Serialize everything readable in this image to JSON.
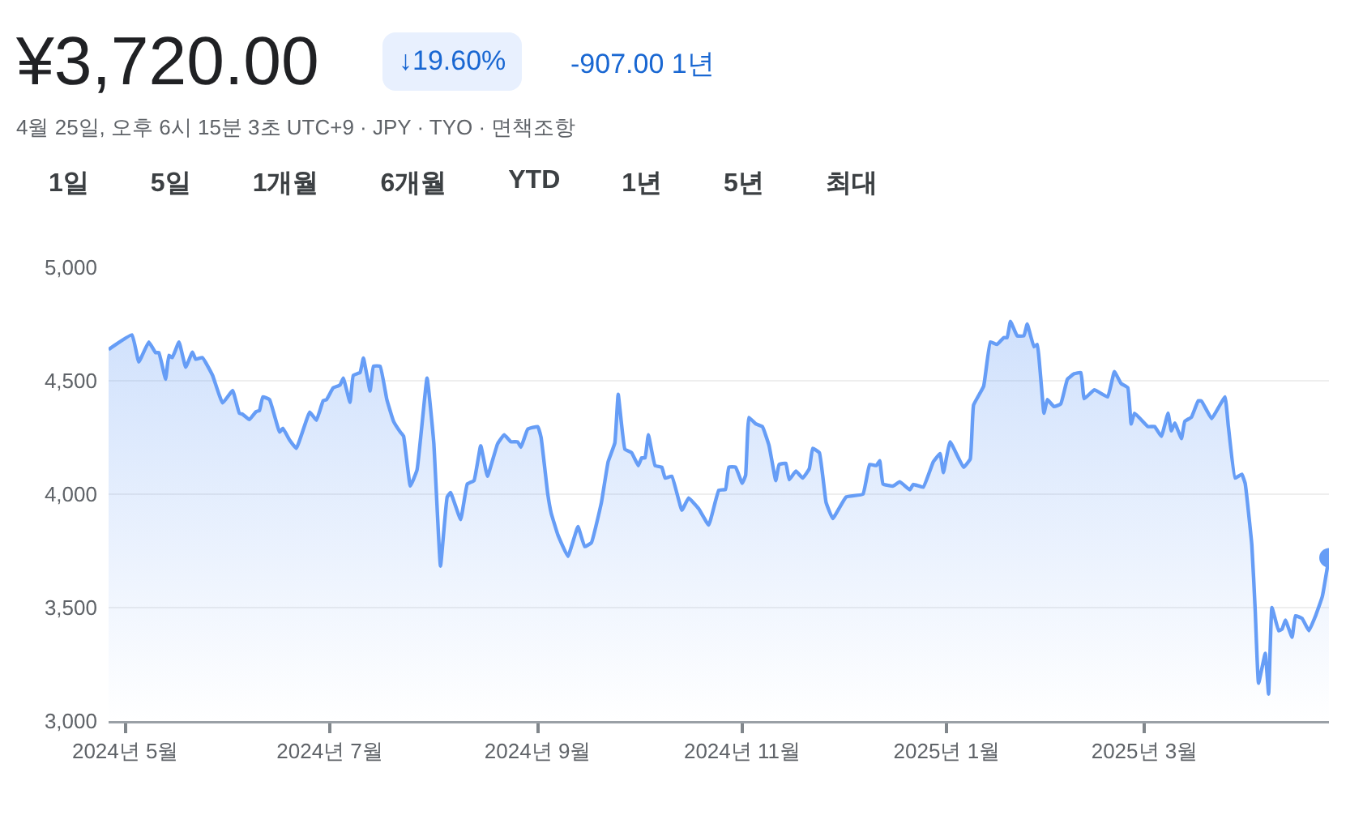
{
  "chart_data": {
    "type": "area",
    "title": "¥3,720.00",
    "subtitle": "4월 25일, 오후 6시 15분 3초 UTC+9 · JPY · TYO · 면책조항",
    "annotations": [
      "↓19.60%",
      "-907.00 1년",
      "1일",
      "5일",
      "1개월",
      "6개월",
      "YTD",
      "1년",
      "5년",
      "최대"
    ],
    "x": [
      "2024-04-26",
      "2024-05-03",
      "2024-05-05",
      "2024-05-08",
      "2024-05-10",
      "2024-05-11",
      "2024-05-13",
      "2024-05-14",
      "2024-05-15",
      "2024-05-17",
      "2024-05-19",
      "2024-05-21",
      "2024-05-22",
      "2024-05-24",
      "2024-05-27",
      "2024-05-30",
      "2024-06-02",
      "2024-06-04",
      "2024-06-05",
      "2024-06-07",
      "2024-06-09",
      "2024-06-10",
      "2024-06-11",
      "2024-06-13",
      "2024-06-16",
      "2024-06-17",
      "2024-06-19",
      "2024-06-21",
      "2024-06-25",
      "2024-06-27",
      "2024-06-29",
      "2024-06-30",
      "2024-07-02",
      "2024-07-04",
      "2024-07-05",
      "2024-07-07",
      "2024-07-08",
      "2024-07-10",
      "2024-07-11",
      "2024-07-13",
      "2024-07-14",
      "2024-07-16",
      "2024-07-18",
      "2024-07-20",
      "2024-07-22",
      "2024-07-23",
      "2024-07-25",
      "2024-07-27",
      "2024-07-30",
      "2024-08-01",
      "2024-08-03",
      "2024-08-05",
      "2024-08-06",
      "2024-08-09",
      "2024-08-11",
      "2024-08-13",
      "2024-08-15",
      "2024-08-17",
      "2024-08-20",
      "2024-08-22",
      "2024-08-24",
      "2024-08-26",
      "2024-08-27",
      "2024-08-29",
      "2024-09-01",
      "2024-09-02",
      "2024-09-04",
      "2024-09-05",
      "2024-09-07",
      "2024-09-10",
      "2024-09-13",
      "2024-09-15",
      "2024-09-17",
      "2024-09-20",
      "2024-09-22",
      "2024-09-24",
      "2024-09-25",
      "2024-09-27",
      "2024-09-29",
      "2024-10-01",
      "2024-10-02",
      "2024-10-03",
      "2024-10-04",
      "2024-10-06",
      "2024-10-08",
      "2024-10-09",
      "2024-10-11",
      "2024-10-14",
      "2024-10-16",
      "2024-10-19",
      "2024-10-22",
      "2024-10-25",
      "2024-10-27",
      "2024-10-28",
      "2024-10-30",
      "2024-11-01",
      "2024-11-02",
      "2024-11-03",
      "2024-11-05",
      "2024-11-07",
      "2024-11-09",
      "2024-11-11",
      "2024-11-12",
      "2024-11-14",
      "2024-11-15",
      "2024-11-17",
      "2024-11-19",
      "2024-11-21",
      "2024-11-22",
      "2024-11-24",
      "2024-11-26",
      "2024-11-28",
      "2024-12-02",
      "2024-12-07",
      "2024-12-09",
      "2024-12-11",
      "2024-12-12",
      "2024-12-13",
      "2024-12-16",
      "2024-12-18",
      "2024-12-21",
      "2024-12-22",
      "2024-12-25",
      "2024-12-28",
      "2024-12-30",
      "2024-12-31",
      "2025-01-02",
      "2025-01-06",
      "2025-01-08",
      "2025-01-09",
      "2025-01-12",
      "2025-01-14",
      "2025-01-16",
      "2025-01-18",
      "2025-01-19",
      "2025-01-20",
      "2025-01-22",
      "2025-01-24",
      "2025-01-25",
      "2025-01-27",
      "2025-01-28",
      "2025-01-30",
      "2025-01-31",
      "2025-02-02",
      "2025-02-04",
      "2025-02-06",
      "2025-02-08",
      "2025-02-10",
      "2025-02-11",
      "2025-02-14",
      "2025-02-18",
      "2025-02-20",
      "2025-02-22",
      "2025-02-24",
      "2025-02-25",
      "2025-02-26",
      "2025-03-02",
      "2025-03-04",
      "2025-03-06",
      "2025-03-08",
      "2025-03-09",
      "2025-03-10",
      "2025-03-12",
      "2025-03-13",
      "2025-03-15",
      "2025-03-17",
      "2025-03-18",
      "2025-03-21",
      "2025-03-23",
      "2025-03-25",
      "2025-03-26",
      "2025-03-28",
      "2025-03-30",
      "2025-03-31",
      "2025-04-02",
      "2025-04-03",
      "2025-04-04",
      "2025-04-06",
      "2025-04-07",
      "2025-04-08",
      "2025-04-10",
      "2025-04-11",
      "2025-04-12",
      "2025-04-14",
      "2025-04-15",
      "2025-04-17",
      "2025-04-19",
      "2025-04-21",
      "2025-04-23",
      "2025-04-25"
    ],
    "series": [
      {
        "color": "#669df6",
        "values": [
          4638,
          4702,
          4583,
          4671,
          4624,
          4624,
          4507,
          4612,
          4602,
          4671,
          4560,
          4626,
          4595,
          4602,
          4524,
          4402,
          4457,
          4357,
          4352,
          4329,
          4364,
          4369,
          4429,
          4417,
          4274,
          4290,
          4238,
          4202,
          4362,
          4326,
          4412,
          4417,
          4469,
          4481,
          4512,
          4405,
          4524,
          4536,
          4600,
          4455,
          4564,
          4564,
          4417,
          4321,
          4274,
          4255,
          4036,
          4107,
          4512,
          4226,
          3683,
          3988,
          4007,
          3888,
          4045,
          4060,
          4214,
          4079,
          4221,
          4262,
          4231,
          4231,
          4207,
          4286,
          4298,
          4250,
          4000,
          3917,
          3821,
          3726,
          3857,
          3769,
          3786,
          3964,
          4143,
          4226,
          4440,
          4198,
          4183,
          4126,
          4160,
          4160,
          4262,
          4126,
          4119,
          4071,
          4079,
          3929,
          3983,
          3936,
          3864,
          4017,
          4021,
          4119,
          4119,
          4048,
          4083,
          4338,
          4310,
          4298,
          4214,
          4060,
          4131,
          4136,
          4064,
          4102,
          4071,
          4112,
          4202,
          4183,
          3964,
          3893,
          3988,
          4000,
          4131,
          4126,
          4148,
          4045,
          4036,
          4055,
          4019,
          4043,
          4031,
          4143,
          4179,
          4095,
          4231,
          4119,
          4155,
          4393,
          4476,
          4671,
          4660,
          4690,
          4690,
          4762,
          4698,
          4698,
          4750,
          4650,
          4660,
          4357,
          4417,
          4386,
          4398,
          4507,
          4531,
          4536,
          4421,
          4460,
          4429,
          4540,
          4488,
          4469,
          4310,
          4357,
          4298,
          4298,
          4255,
          4357,
          4279,
          4314,
          4245,
          4321,
          4340,
          4412,
          4410,
          4333,
          4381,
          4429,
          4298,
          4071,
          4088,
          4048,
          3774,
          3488,
          3167,
          3298,
          3119,
          3500,
          3398,
          3405,
          3445,
          3369,
          3464,
          3452,
          3398,
          3464,
          3548,
          3720
        ]
      }
    ],
    "xlim": [
      "2024-04-26",
      "2025-04-25"
    ],
    "xticks": [
      {
        "value": "2024-05-01",
        "label": "2024년 5월"
      },
      {
        "value": "2024-07-01",
        "label": "2024년 7월"
      },
      {
        "value": "2024-09-01",
        "label": "2024년 9월"
      },
      {
        "value": "2024-11-01",
        "label": "2024년 11월"
      },
      {
        "value": "2025-01-01",
        "label": "2025년 1월"
      },
      {
        "value": "2025-03-01",
        "label": "2025년 3월"
      }
    ],
    "ylim": [
      3000,
      5000
    ],
    "yticks": [
      {
        "value": 3000,
        "label": "3,000"
      },
      {
        "value": 3500,
        "label": "3,500"
      },
      {
        "value": 4000,
        "label": "4,000"
      },
      {
        "value": 4500,
        "label": "4,500"
      },
      {
        "value": 5000,
        "label": "5,000"
      }
    ],
    "grid": "y",
    "marker": "none",
    "line_style": "solid"
  }
}
